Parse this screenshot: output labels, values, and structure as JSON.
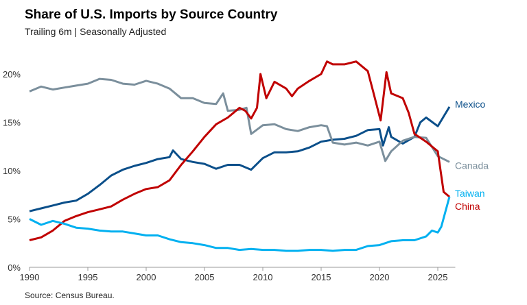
{
  "chart_data": {
    "type": "line",
    "title": "Share of U.S. Imports by Source Country",
    "subtitle": "Trailing 6m | Seasonally Adjusted",
    "source": "Source: Census Bureau.",
    "xlim": [
      1990,
      2026.5
    ],
    "ylim": [
      0,
      22
    ],
    "x_ticks": [
      1990,
      1995,
      2000,
      2005,
      2010,
      2015,
      2020,
      2025
    ],
    "y_ticks": [
      0,
      5,
      10,
      15,
      20
    ],
    "y_tick_labels": [
      "0%",
      "5%",
      "10%",
      "15%",
      "20%"
    ],
    "grid": false,
    "legend": "inline labels at line ends (right)",
    "series": [
      {
        "name": "Mexico",
        "color": "#0b4f8a",
        "x": [
          1990,
          1991,
          1992,
          1993,
          1994,
          1995,
          1996,
          1997,
          1998,
          1999,
          2000,
          2001,
          2002,
          2002.3,
          2003,
          2004,
          2005,
          2006,
          2007,
          2008,
          2009,
          2010,
          2011,
          2012,
          2013,
          2014,
          2015,
          2016,
          2017,
          2018,
          2019,
          2020,
          2020.3,
          2020.8,
          2021,
          2022,
          2023,
          2023.5,
          2024,
          2025,
          2026
        ],
        "y": [
          5.8,
          6.1,
          6.4,
          6.7,
          6.9,
          7.6,
          8.5,
          9.5,
          10.1,
          10.5,
          10.8,
          11.2,
          11.4,
          12.1,
          11.2,
          10.9,
          10.7,
          10.2,
          10.6,
          10.6,
          10.1,
          11.3,
          11.9,
          11.9,
          12.0,
          12.4,
          13.0,
          13.2,
          13.3,
          13.6,
          14.2,
          14.3,
          12.6,
          14.5,
          13.5,
          12.8,
          13.5,
          15.0,
          15.5,
          14.6,
          16.6
        ]
      },
      {
        "name": "Canada",
        "color": "#7b8f9c",
        "x": [
          1990,
          1991,
          1992,
          1993,
          1994,
          1995,
          1996,
          1997,
          1998,
          1999,
          2000,
          2001,
          2002,
          2003,
          2004,
          2005,
          2006,
          2006.6,
          2007,
          2008,
          2008.6,
          2009,
          2010,
          2011,
          2012,
          2013,
          2014,
          2015,
          2015.5,
          2016,
          2017,
          2018,
          2019,
          2020,
          2020.5,
          2021,
          2022,
          2023,
          2024,
          2025,
          2026
        ],
        "y": [
          18.2,
          18.7,
          18.4,
          18.6,
          18.8,
          19.0,
          19.5,
          19.4,
          19.0,
          18.9,
          19.3,
          19.0,
          18.5,
          17.5,
          17.5,
          17.0,
          16.9,
          18.0,
          16.2,
          16.3,
          16.5,
          13.8,
          14.7,
          14.8,
          14.3,
          14.1,
          14.5,
          14.7,
          14.6,
          12.9,
          12.7,
          12.9,
          12.6,
          13.0,
          11.0,
          12.0,
          13.1,
          13.5,
          13.4,
          11.5,
          10.9
        ]
      },
      {
        "name": "China",
        "color": "#c00000",
        "x": [
          1990,
          1991,
          1992,
          1993,
          1994,
          1995,
          1996,
          1997,
          1998,
          1999,
          2000,
          2001,
          2002,
          2003,
          2004,
          2005,
          2006,
          2007,
          2008,
          2008.5,
          2009,
          2009.5,
          2009.8,
          2010.3,
          2011,
          2012,
          2012.5,
          2013,
          2014,
          2015,
          2015.5,
          2016,
          2017,
          2018,
          2019,
          2019.5,
          2020.1,
          2020.6,
          2021,
          2022,
          2022.5,
          2023,
          2024,
          2025,
          2025.5,
          2026
        ],
        "y": [
          2.8,
          3.1,
          3.8,
          4.8,
          5.3,
          5.7,
          6.0,
          6.3,
          7.0,
          7.6,
          8.1,
          8.3,
          9.0,
          10.6,
          12.0,
          13.5,
          14.8,
          15.5,
          16.5,
          16.2,
          15.4,
          16.5,
          20.0,
          17.5,
          19.2,
          18.5,
          17.7,
          18.5,
          19.3,
          20.0,
          21.3,
          21.0,
          21.0,
          21.3,
          20.3,
          18.0,
          15.2,
          20.2,
          18.0,
          17.5,
          16.0,
          13.8,
          13.0,
          12.0,
          7.8,
          7.3
        ]
      },
      {
        "name": "Taiwan",
        "color": "#00b0f0",
        "x": [
          1990,
          1991,
          1992,
          1993,
          1994,
          1995,
          1996,
          1997,
          1998,
          1999,
          2000,
          2001,
          2002,
          2003,
          2004,
          2005,
          2006,
          2007,
          2008,
          2009,
          2010,
          2011,
          2012,
          2013,
          2014,
          2015,
          2016,
          2017,
          2018,
          2019,
          2020,
          2021,
          2022,
          2023,
          2024,
          2024.5,
          2025,
          2025.3,
          2026
        ],
        "y": [
          5.0,
          4.4,
          4.8,
          4.5,
          4.1,
          4.0,
          3.8,
          3.7,
          3.7,
          3.5,
          3.3,
          3.3,
          2.9,
          2.6,
          2.5,
          2.3,
          2.0,
          2.0,
          1.8,
          1.9,
          1.8,
          1.8,
          1.7,
          1.7,
          1.8,
          1.8,
          1.7,
          1.8,
          1.8,
          2.2,
          2.3,
          2.7,
          2.8,
          2.8,
          3.2,
          3.8,
          3.6,
          4.2,
          7.3
        ]
      }
    ]
  }
}
